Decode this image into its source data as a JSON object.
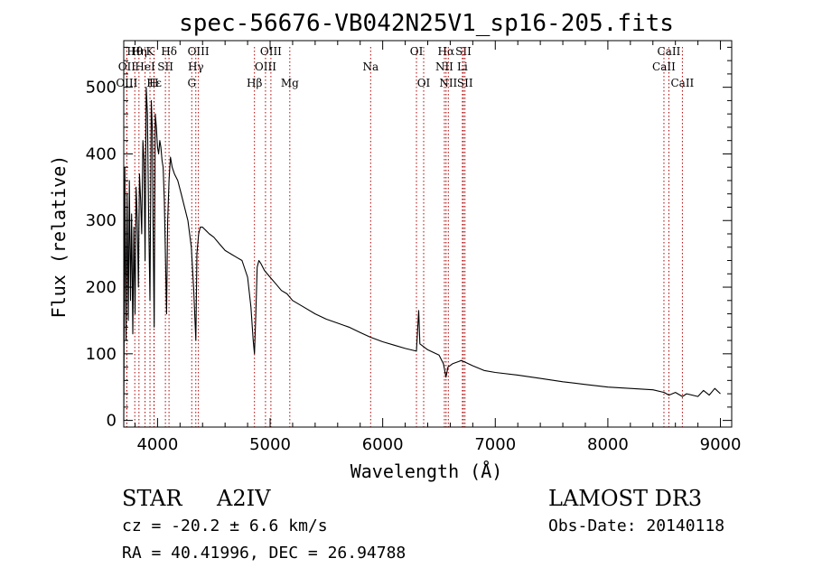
{
  "chart_data": {
    "type": "line",
    "title": "spec-56676-VB042N25V1_sp16-205.fits",
    "xlabel": "Wavelength (Å)",
    "ylabel": "Flux (relative)",
    "xlim": [
      3700,
      9100
    ],
    "ylim": [
      -10,
      570
    ],
    "xticks": [
      4000,
      5000,
      6000,
      7000,
      8000,
      9000
    ],
    "yticks": [
      0,
      100,
      200,
      300,
      400,
      500
    ],
    "series": [
      {
        "name": "flux",
        "x": [
          3700,
          3710,
          3720,
          3730,
          3740,
          3750,
          3760,
          3770,
          3780,
          3790,
          3800,
          3810,
          3820,
          3830,
          3840,
          3850,
          3860,
          3870,
          3880,
          3889,
          3900,
          3910,
          3920,
          3933,
          3945,
          3955,
          3960,
          3970,
          3980,
          3990,
          4000,
          4010,
          4020,
          4030,
          4040,
          4050,
          4060,
          4080,
          4090,
          4102,
          4115,
          4130,
          4150,
          4180,
          4210,
          4240,
          4270,
          4300,
          4320,
          4340,
          4350,
          4365,
          4380,
          4400,
          4430,
          4460,
          4500,
          4550,
          4600,
          4650,
          4700,
          4750,
          4800,
          4830,
          4850,
          4861,
          4872,
          4885,
          4900,
          4920,
          4950,
          5000,
          5050,
          5100,
          5150,
          5200,
          5300,
          5400,
          5500,
          5600,
          5700,
          5800,
          5890,
          6000,
          6100,
          6200,
          6300,
          6320,
          6330,
          6400,
          6500,
          6540,
          6562,
          6580,
          6620,
          6700,
          6800,
          6900,
          7000,
          7200,
          7400,
          7600,
          7800,
          8000,
          8200,
          8400,
          8500,
          8542,
          8600,
          8662,
          8700,
          8800,
          8850,
          8900,
          8950,
          9000
        ],
        "y": [
          0,
          380,
          120,
          340,
          150,
          360,
          180,
          310,
          130,
          290,
          160,
          350,
          300,
          200,
          370,
          330,
          280,
          420,
          390,
          240,
          500,
          460,
          320,
          180,
          480,
          430,
          300,
          140,
          460,
          440,
          410,
          400,
          420,
          410,
          390,
          380,
          330,
          160,
          300,
          360,
          395,
          380,
          370,
          360,
          340,
          320,
          300,
          260,
          200,
          120,
          250,
          280,
          290,
          290,
          285,
          280,
          275,
          265,
          255,
          250,
          245,
          240,
          215,
          170,
          120,
          100,
          155,
          230,
          240,
          235,
          225,
          215,
          205,
          195,
          190,
          180,
          170,
          160,
          152,
          146,
          140,
          132,
          125,
          118,
          113,
          108,
          104,
          165,
          115,
          106,
          98,
          85,
          65,
          80,
          85,
          90,
          82,
          75,
          72,
          68,
          63,
          58,
          54,
          50,
          48,
          46,
          42,
          38,
          42,
          36,
          40,
          36,
          45,
          38,
          48,
          40
        ]
      }
    ],
    "lines": [
      {
        "label": "Hθ",
        "x": 3798,
        "row": 1
      },
      {
        "label": "OII",
        "x": 3727,
        "row": 2
      },
      {
        "label": "OIII",
        "x": 3727,
        "row": 3
      },
      {
        "label": "Hη",
        "x": 3835,
        "row": 1
      },
      {
        "label": "HeI",
        "x": 3889,
        "row": 2
      },
      {
        "label": "Hε",
        "x": 3970,
        "row": 3
      },
      {
        "label": "K",
        "x": 3933,
        "row": 1
      },
      {
        "label": "SII",
        "x": 4070,
        "row": 2
      },
      {
        "label": "H",
        "x": 3968,
        "row": 3
      },
      {
        "label": "Hδ",
        "x": 4102,
        "row": 1
      },
      {
        "label": "OIII",
        "x": 4363,
        "row": 1
      },
      {
        "label": "Hγ",
        "x": 4340,
        "row": 2
      },
      {
        "label": "G",
        "x": 4304,
        "row": 3
      },
      {
        "label": "Hβ",
        "x": 4861,
        "row": 3
      },
      {
        "label": "OIII",
        "x": 5007,
        "row": 1
      },
      {
        "label": "OIII",
        "x": 4959,
        "row": 2
      },
      {
        "label": "Mg",
        "x": 5175,
        "row": 3
      },
      {
        "label": "Na",
        "x": 5893,
        "row": 2
      },
      {
        "label": "OI",
        "x": 6300,
        "row": 1
      },
      {
        "label": "OI",
        "x": 6364,
        "row": 3
      },
      {
        "label": "Hα",
        "x": 6563,
        "row": 1
      },
      {
        "label": "NII",
        "x": 6548,
        "row": 2
      },
      {
        "label": "NII",
        "x": 6583,
        "row": 3
      },
      {
        "label": "SII",
        "x": 6717,
        "row": 1
      },
      {
        "label": "Li",
        "x": 6708,
        "row": 2
      },
      {
        "label": "SII",
        "x": 6731,
        "row": 3
      },
      {
        "label": "CaII",
        "x": 8542,
        "row": 1
      },
      {
        "label": "CaII",
        "x": 8498,
        "row": 2
      },
      {
        "label": "CaII",
        "x": 8662,
        "row": 3
      }
    ]
  },
  "info": {
    "object_class": "STAR",
    "subclass": "A2IV",
    "survey": "LAMOST DR3",
    "cz": "cz = -20.2 ± 6.6 km/s",
    "obs_date": "Obs-Date: 20140118",
    "coords": "RA =  40.41996, DEC =  26.94788"
  },
  "colors": {
    "spectrum": "#000000",
    "line_marker": "#b00000",
    "axes": "#000000"
  }
}
